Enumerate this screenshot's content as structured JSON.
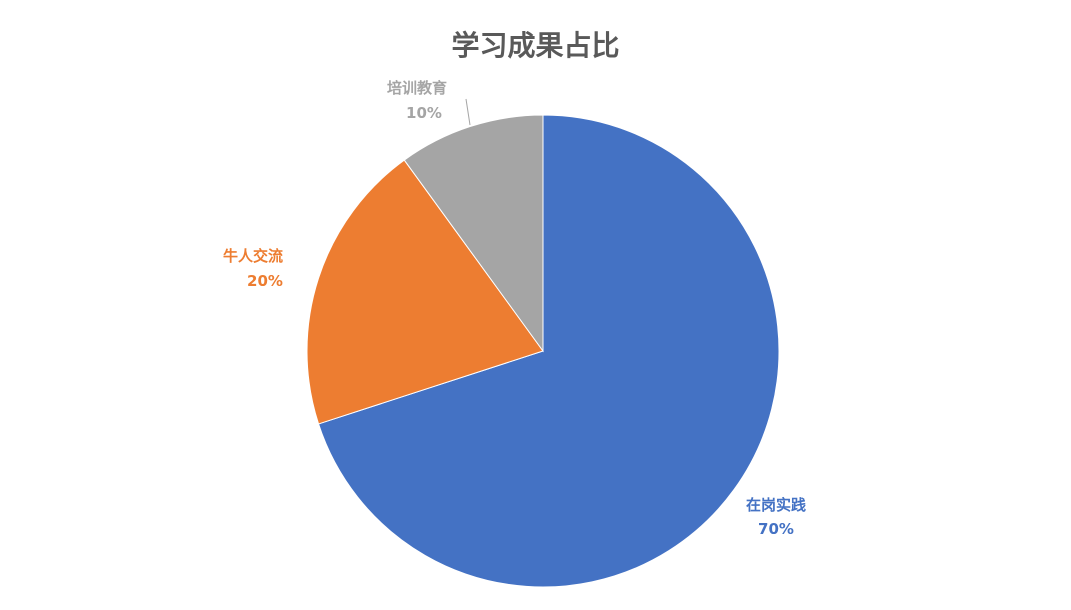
{
  "chart_data": {
    "type": "pie",
    "title": "学习成果占比",
    "start_angle": "12 o'clock",
    "direction": "clockwise",
    "slices": [
      {
        "label": "在岗实践",
        "value": 70,
        "value_label": "70%",
        "color": "#4472C4"
      },
      {
        "label": "牛人交流",
        "value": 20,
        "value_label": "20%",
        "color": "#ED7D31"
      },
      {
        "label": "培训教育",
        "value": 10,
        "value_label": "10%",
        "color": "#A5A5A5"
      }
    ],
    "legend": "none"
  }
}
